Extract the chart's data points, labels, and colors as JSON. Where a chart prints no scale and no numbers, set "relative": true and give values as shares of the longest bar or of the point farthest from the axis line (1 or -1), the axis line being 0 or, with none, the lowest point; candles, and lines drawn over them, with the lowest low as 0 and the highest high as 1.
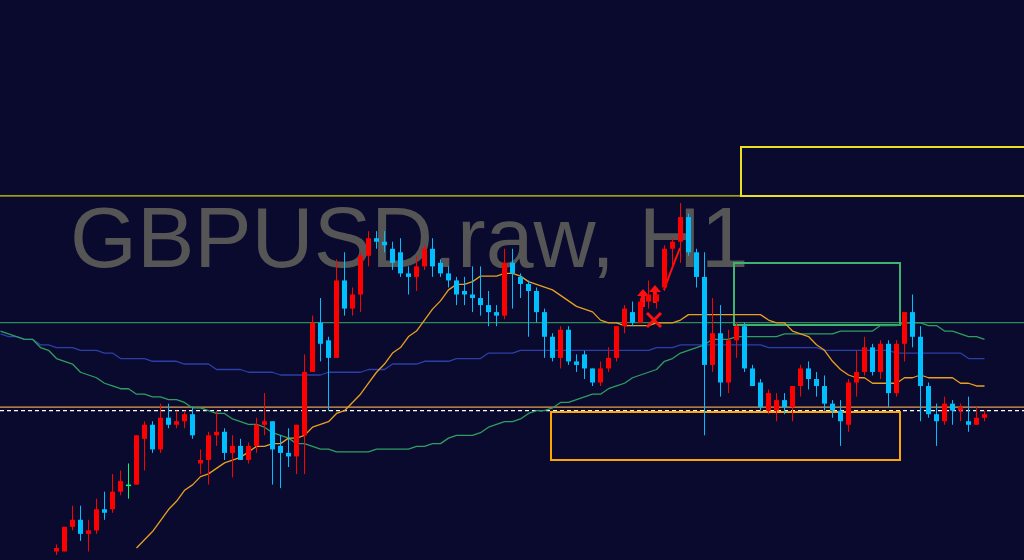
{
  "chart_data": [
    {
      "type": "candlestick",
      "title": "GBPUSD.raw, H1",
      "relative": true,
      "tick_labels": false,
      "grid": false,
      "categories": [
        null,
        null,
        null,
        null,
        null,
        null,
        null,
        null,
        null,
        null,
        null,
        null,
        null,
        null,
        null,
        null,
        null,
        null,
        null,
        null,
        null,
        null,
        null,
        null,
        null,
        null,
        null,
        null,
        null,
        null,
        null,
        null,
        null,
        null,
        null,
        null,
        null,
        null,
        null,
        null,
        null,
        null,
        null,
        null,
        null,
        null,
        null,
        null,
        null,
        null,
        null,
        null,
        null,
        null,
        null,
        null,
        null,
        null,
        null,
        null,
        null,
        null,
        null,
        null,
        null,
        null,
        null,
        null,
        null,
        null,
        null,
        null,
        null,
        null,
        null,
        null,
        null,
        null,
        null,
        null,
        null,
        null,
        null,
        null,
        null,
        null,
        null,
        null,
        null,
        null,
        null,
        null,
        null,
        null,
        null,
        null,
        null,
        null,
        null,
        null,
        null,
        null,
        null,
        null,
        null,
        null,
        null,
        null,
        null,
        null,
        null,
        null,
        null,
        null,
        null,
        null,
        null
      ],
      "ohlc": [
        [
          0.01,
          0.03,
          0,
          0.02
        ],
        [
          0.01,
          0.08,
          0.01,
          0.08
        ],
        [
          0.08,
          0.14,
          0.07,
          0.1
        ],
        [
          0.1,
          0.14,
          0.04,
          0.06
        ],
        [
          0.06,
          0.1,
          0.01,
          0.07
        ],
        [
          0.07,
          0.16,
          0.06,
          0.13
        ],
        [
          0.13,
          0.18,
          0.1,
          0.12
        ],
        [
          0.13,
          0.23,
          0.12,
          0.18
        ],
        [
          0.18,
          0.24,
          0.17,
          0.21
        ],
        [
          0.2,
          0.26,
          0.16,
          0.2
        ],
        [
          0.2,
          0.34,
          0.2,
          0.34
        ],
        [
          0.33,
          0.38,
          0.24,
          0.37
        ],
        [
          0.37,
          0.38,
          0.29,
          0.3
        ],
        [
          0.3,
          0.43,
          0.29,
          0.39
        ],
        [
          0.39,
          0.43,
          0.36,
          0.37
        ],
        [
          0.37,
          0.41,
          0.36,
          0.38
        ],
        [
          0.38,
          0.41,
          0.36,
          0.4
        ],
        [
          0.4,
          0.42,
          0.33,
          0.34
        ],
        [
          0.26,
          0.3,
          0.23,
          0.27
        ],
        [
          0.27,
          0.35,
          0.2,
          0.34
        ],
        [
          0.34,
          0.41,
          0.31,
          0.35
        ],
        [
          0.35,
          0.36,
          0.27,
          0.29
        ],
        [
          0.29,
          0.34,
          0.22,
          0.31
        ],
        [
          0.31,
          0.33,
          0.27,
          0.27
        ],
        [
          0.27,
          0.32,
          0.26,
          0.31
        ],
        [
          0.31,
          0.39,
          0.29,
          0.37
        ],
        [
          0.37,
          0.46,
          0.34,
          0.38
        ],
        [
          0.38,
          0.38,
          0.2,
          0.3
        ],
        [
          0.31,
          0.34,
          0.19,
          0.29
        ],
        [
          0.29,
          0.36,
          0.25,
          0.28
        ],
        [
          0.28,
          0.37,
          0.23,
          0.37
        ],
        [
          0.34,
          0.57,
          0.23,
          0.52
        ],
        [
          0.52,
          0.68,
          0.52,
          0.66
        ],
        [
          0.66,
          0.73,
          0.55,
          0.6
        ],
        [
          0.61,
          0.62,
          0.41,
          0.56
        ],
        [
          0.56,
          0.84,
          0.56,
          0.78
        ],
        [
          0.78,
          0.86,
          0.68,
          0.7
        ],
        [
          0.7,
          0.76,
          0.68,
          0.74
        ],
        [
          0.74,
          0.86,
          0.69,
          0.85
        ],
        [
          0.85,
          0.92,
          0.82,
          0.9
        ],
        [
          0.9,
          0.92,
          0.87,
          0.89
        ],
        [
          0.89,
          0.92,
          0.86,
          0.88
        ],
        [
          0.87,
          0.89,
          0.81,
          0.83
        ],
        [
          0.86,
          0.9,
          0.79,
          0.8
        ],
        [
          0.8,
          0.82,
          0.74,
          0.79
        ],
        [
          0.79,
          0.85,
          0.75,
          0.82
        ],
        [
          0.82,
          0.88,
          0.81,
          0.87
        ],
        [
          0.87,
          0.9,
          0.79,
          0.82
        ],
        [
          0.83,
          0.84,
          0.79,
          0.8
        ],
        [
          0.8,
          0.82,
          0.76,
          0.78
        ],
        [
          0.78,
          0.79,
          0.71,
          0.74
        ],
        [
          0.75,
          0.79,
          0.71,
          0.74
        ],
        [
          0.74,
          0.82,
          0.69,
          0.73
        ],
        [
          0.73,
          0.82,
          0.68,
          0.71
        ],
        [
          0.71,
          0.75,
          0.65,
          0.69
        ],
        [
          0.69,
          0.71,
          0.65,
          0.68
        ],
        [
          0.68,
          0.87,
          0.67,
          0.83
        ],
        [
          0.83,
          0.87,
          0.7,
          0.8
        ],
        [
          0.79,
          0.8,
          0.73,
          0.77
        ],
        [
          0.77,
          0.78,
          0.62,
          0.75
        ],
        [
          0.75,
          0.76,
          0.66,
          0.69
        ],
        [
          0.69,
          0.7,
          0.56,
          0.62
        ],
        [
          0.62,
          0.63,
          0.55,
          0.56
        ],
        [
          0.56,
          0.65,
          0.53,
          0.64
        ],
        [
          0.64,
          0.65,
          0.54,
          0.55
        ],
        [
          0.55,
          0.57,
          0.52,
          0.54
        ],
        [
          0.57,
          0.58,
          0.5,
          0.53
        ],
        [
          0.53,
          0.53,
          0.48,
          0.49
        ],
        [
          0.49,
          0.55,
          0.48,
          0.53
        ],
        [
          0.53,
          0.59,
          0.52,
          0.56
        ],
        [
          0.56,
          0.65,
          0.55,
          0.65
        ],
        [
          0.65,
          0.71,
          0.63,
          0.7
        ],
        [
          0.69,
          0.72,
          0.65,
          0.66
        ],
        [
          0.66,
          0.73,
          0.66,
          0.72
        ],
        [
          0.72,
          0.78,
          0.7,
          0.74
        ],
        [
          0.72,
          0.75,
          0.7,
          0.74
        ],
        [
          0.76,
          0.88,
          0.75,
          0.87
        ],
        [
          0.87,
          0.9,
          0.82,
          0.89
        ],
        [
          0.89,
          1,
          0.83,
          0.96
        ],
        [
          0.96,
          0.97,
          0.85,
          0.86
        ],
        [
          0.86,
          0.87,
          0.76,
          0.79
        ],
        [
          0.79,
          0.86,
          0.34,
          0.54
        ],
        [
          0.54,
          0.73,
          0.52,
          0.63
        ],
        [
          0.63,
          0.71,
          0.45,
          0.49
        ],
        [
          0.49,
          0.64,
          0.46,
          0.61
        ],
        [
          0.61,
          0.66,
          0.56,
          0.65
        ],
        [
          0.65,
          0.66,
          0.52,
          0.53
        ],
        [
          0.53,
          0.54,
          0.48,
          0.48
        ],
        [
          0.49,
          0.5,
          0.41,
          0.42
        ],
        [
          0.41,
          0.47,
          0.4,
          0.46
        ],
        [
          0.41,
          0.46,
          0.38,
          0.44
        ],
        [
          0.44,
          0.46,
          0.4,
          0.42
        ],
        [
          0.42,
          0.48,
          0.38,
          0.48
        ],
        [
          0.48,
          0.54,
          0.45,
          0.53
        ],
        [
          0.53,
          0.55,
          0.47,
          0.5
        ],
        [
          0.5,
          0.52,
          0.45,
          0.48
        ],
        [
          0.48,
          0.51,
          0.41,
          0.43
        ],
        [
          0.43,
          0.44,
          0.39,
          0.41
        ],
        [
          0.41,
          0.44,
          0.31,
          0.38
        ],
        [
          0.37,
          0.5,
          0.35,
          0.49
        ],
        [
          0.49,
          0.58,
          0.45,
          0.52
        ],
        [
          0.52,
          0.62,
          0.51,
          0.59
        ],
        [
          0.59,
          0.6,
          0.51,
          0.52
        ],
        [
          0.52,
          0.61,
          0.5,
          0.6
        ],
        [
          0.6,
          0.61,
          0.42,
          0.46
        ],
        [
          0.46,
          0.61,
          0.45,
          0.6
        ],
        [
          0.6,
          0.69,
          0.55,
          0.69
        ],
        [
          0.69,
          0.74,
          0.59,
          0.62
        ],
        [
          0.62,
          0.65,
          0.38,
          0.48
        ],
        [
          0.48,
          0.49,
          0.39,
          0.4
        ],
        [
          0.4,
          0.43,
          0.31,
          0.38
        ],
        [
          0.38,
          0.45,
          0.37,
          0.43
        ],
        [
          0.43,
          0.44,
          0.37,
          0.41
        ],
        [
          0.41,
          0.43,
          0.38,
          0.42
        ],
        [
          0.38,
          0.45,
          0.35,
          0.37
        ],
        [
          0.37,
          0.42,
          0.37,
          0.39
        ],
        [
          0.39,
          0.41,
          0.38,
          0.4
        ]
      ],
      "colors": [
        "#ff0000",
        "#ff0000",
        "#ff0000",
        "#00bfff",
        "#ff0000",
        "#ff0000",
        "#00bfff",
        "#ff0000",
        "#ff0000",
        "#00ff66",
        "#ff0000",
        "#ff0000",
        "#00bfff",
        "#ff0000",
        "#00bfff",
        "#ff0000",
        "#ff0000",
        "#00bfff",
        "#ff0000",
        "#ff0000",
        "#ff0000",
        "#00bfff",
        "#ff0000",
        "#00bfff",
        "#ff0000",
        "#ff0000",
        "#ff0000",
        "#00bfff",
        "#00bfff",
        "#00bfff",
        "#ff0000",
        "#ff0000",
        "#ff0000",
        "#00bfff",
        "#00bfff",
        "#ff0000",
        "#00bfff",
        "#ff0000",
        "#ff0000",
        "#ff0000",
        "#00bfff",
        "#00bfff",
        "#00bfff",
        "#00bfff",
        "#00bfff",
        "#ff0000",
        "#ff0000",
        "#00bfff",
        "#00bfff",
        "#00bfff",
        "#00bfff",
        "#00bfff",
        "#00bfff",
        "#00bfff",
        "#00bfff",
        "#00bfff",
        "#ff0000",
        "#00bfff",
        "#00bfff",
        "#00bfff",
        "#00bfff",
        "#00bfff",
        "#00bfff",
        "#ff0000",
        "#00bfff",
        "#00bfff",
        "#00bfff",
        "#00bfff",
        "#ff0000",
        "#ff0000",
        "#ff0000",
        "#ff0000",
        "#00bfff",
        "#ff0000",
        "#ff0000",
        "#ff0000",
        "#ff0000",
        "#ff0000",
        "#ff0000",
        "#00bfff",
        "#00bfff",
        "#00bfff",
        "#ff0000",
        "#00bfff",
        "#ff0000",
        "#ff0000",
        "#00bfff",
        "#00bfff",
        "#00bfff",
        "#ff0000",
        "#ff0000",
        "#00bfff",
        "#ff0000",
        "#ff0000",
        "#00bfff",
        "#00bfff",
        "#00bfff",
        "#00bfff",
        "#00bfff",
        "#ff0000",
        "#ff0000",
        "#ff0000",
        "#00bfff",
        "#ff0000",
        "#00bfff",
        "#ff0000",
        "#ff0000",
        "#00bfff",
        "#00bfff",
        "#00bfff",
        "#00bfff",
        "#ff0000",
        "#00bfff",
        "#ff0000",
        "#00bfff",
        "#ff0000",
        "#ff0000"
      ],
      "ref_lines": [
        {
          "axis": "y",
          "value": 1.02,
          "color": "#d4d400",
          "line_style": "solid"
        },
        {
          "axis": "y",
          "value": 0.66,
          "color": "#2e8b57",
          "line_style": "solid"
        },
        {
          "axis": "y",
          "value": 0.42,
          "color": "#e8a050",
          "line_style": "solid"
        },
        {
          "axis": "y",
          "value": 0.41,
          "color": "#ffffff",
          "line_style": "dashed"
        }
      ]
    },
    {
      "type": "line",
      "relative": true,
      "tick_labels": false,
      "categories": [
        null,
        null,
        null,
        null,
        null,
        null,
        null,
        null,
        null,
        null,
        null,
        null,
        null,
        null,
        null,
        null,
        null,
        null,
        null,
        null,
        null,
        null,
        null,
        null,
        null,
        null,
        null,
        null,
        null,
        null,
        null,
        null,
        null,
        null,
        null,
        null,
        null,
        null,
        null,
        null,
        null,
        null,
        null,
        null,
        null,
        null,
        null,
        null,
        null,
        null,
        null,
        null,
        null,
        null,
        null,
        null,
        null,
        null,
        null,
        null,
        null,
        null,
        null,
        null,
        null,
        null,
        null,
        null,
        null,
        null,
        null,
        null,
        null,
        null,
        null,
        null,
        null,
        null,
        null,
        null,
        null,
        null,
        null,
        null,
        null,
        null,
        null,
        null,
        null,
        null,
        null,
        null,
        null,
        null,
        null,
        null,
        null,
        null,
        null,
        null,
        null,
        null,
        null,
        null,
        null,
        null,
        null,
        null,
        null,
        null,
        null,
        null,
        null,
        null,
        null,
        null,
        null,
        null,
        null,
        null,
        null,
        null,
        null,
        null
      ],
      "series": [
        {
          "color": "#2c3fa8",
          "values": [
            0.78,
            0.77,
            0.77,
            0.76,
            0.76,
            0.74,
            0.74,
            0.73,
            0.73,
            0.73,
            0.72,
            0.72,
            0.72,
            0.71,
            0.71,
            0.69,
            0.69,
            0.69,
            0.69,
            0.68,
            0.68,
            0.68,
            0.68,
            0.67,
            0.67,
            0.67,
            0.67,
            0.65,
            0.65,
            0.65,
            0.65,
            0.64,
            0.64,
            0.64,
            0.64,
            0.63,
            0.63,
            0.63,
            0.63,
            0.63,
            0.63,
            0.64,
            0.64,
            0.64,
            0.64,
            0.64,
            0.65,
            0.65,
            0.65,
            0.67,
            0.67,
            0.67,
            0.67,
            0.68,
            0.68,
            0.68,
            0.68,
            0.69,
            0.69,
            0.69,
            0.69,
            0.71,
            0.71,
            0.71,
            0.71,
            0.72,
            0.72,
            0.72,
            0.72,
            0.72,
            0.72,
            0.72,
            0.72,
            0.72,
            0.72,
            0.72,
            0.72,
            0.72,
            0.72,
            0.72,
            0.72,
            0.72,
            0.73,
            0.73,
            0.73,
            0.74,
            0.74,
            0.74,
            0.74,
            0.74,
            0.74,
            0.74,
            0.74,
            0.74,
            0.74,
            0.74,
            0.73,
            0.73,
            0.73,
            0.73,
            0.73,
            0.73,
            0.73,
            0.72,
            0.72,
            0.72,
            0.72,
            0.72,
            0.72,
            0.72,
            0.72,
            0.72,
            0.71,
            0.71,
            0.71,
            0.71,
            0.71,
            0.71,
            0.71,
            0.71,
            0.71,
            0.69,
            0.69,
            0.69
          ]
        },
        {
          "color": "#2e9e60",
          "values": [
            0.79,
            0.78,
            0.77,
            0.76,
            0.76,
            0.73,
            0.72,
            0.69,
            0.68,
            0.67,
            0.64,
            0.63,
            0.62,
            0.6,
            0.59,
            0.58,
            0.58,
            0.56,
            0.56,
            0.55,
            0.55,
            0.54,
            0.54,
            0.53,
            0.51,
            0.51,
            0.5,
            0.49,
            0.49,
            0.47,
            0.46,
            0.45,
            0.45,
            0.44,
            0.42,
            0.41,
            0.4,
            0.38,
            0.38,
            0.37,
            0.36,
            0.36,
            0.35,
            0.35,
            0.35,
            0.35,
            0.35,
            0.36,
            0.36,
            0.36,
            0.36,
            0.36,
            0.37,
            0.37,
            0.38,
            0.38,
            0.4,
            0.41,
            0.41,
            0.41,
            0.42,
            0.44,
            0.45,
            0.46,
            0.46,
            0.47,
            0.49,
            0.5,
            0.5,
            0.51,
            0.53,
            0.53,
            0.54,
            0.55,
            0.56,
            0.56,
            0.58,
            0.59,
            0.6,
            0.62,
            0.63,
            0.64,
            0.65,
            0.68,
            0.69,
            0.71,
            0.72,
            0.73,
            0.74,
            0.76,
            0.76,
            0.76,
            0.77,
            0.77,
            0.77,
            0.77,
            0.77,
            0.77,
            0.78,
            0.78,
            0.78,
            0.78,
            0.78,
            0.78,
            0.78,
            0.79,
            0.79,
            0.79,
            0.79,
            0.79,
            0.81,
            0.81,
            0.81,
            0.82,
            0.82,
            0.82,
            0.81,
            0.81,
            0.79,
            0.79,
            0.78,
            0.77,
            0.77,
            0.76
          ]
        },
        {
          "color": "#e8a020",
          "values": [
            null,
            null,
            null,
            null,
            null,
            null,
            null,
            null,
            null,
            null,
            null,
            null,
            null,
            null,
            null,
            null,
            null,
            0,
            0.03,
            0.06,
            0.1,
            0.14,
            0.17,
            0.21,
            0.23,
            0.26,
            0.27,
            0.29,
            0.31,
            0.32,
            0.33,
            0.35,
            0.37,
            0.37,
            0.38,
            0.38,
            0.4,
            0.4,
            0.41,
            0.44,
            0.45,
            0.46,
            0.49,
            0.5,
            0.53,
            0.56,
            0.6,
            0.64,
            0.67,
            0.71,
            0.73,
            0.77,
            0.79,
            0.83,
            0.87,
            0.9,
            0.94,
            0.96,
            0.96,
            0.97,
            0.99,
            0.99,
            0.99,
            1,
            1,
            0.99,
            0.97,
            0.96,
            0.95,
            0.94,
            0.92,
            0.9,
            0.88,
            0.87,
            0.86,
            0.83,
            0.82,
            0.82,
            0.81,
            0.81,
            0.81,
            0.81,
            0.82,
            0.82,
            0.82,
            0.83,
            0.85,
            0.85,
            0.85,
            0.85,
            0.85,
            0.85,
            0.85,
            0.85,
            0.85,
            0.85,
            0.83,
            0.82,
            0.82,
            0.79,
            0.78,
            0.77,
            0.74,
            0.72,
            0.68,
            0.65,
            0.63,
            0.62,
            0.62,
            0.6,
            0.6,
            0.6,
            0.6,
            0.62,
            0.62,
            0.63,
            0.62,
            0.62,
            0.62,
            0.62,
            0.6,
            0.6,
            0.59,
            0.59
          ]
        }
      ]
    }
  ]
}
